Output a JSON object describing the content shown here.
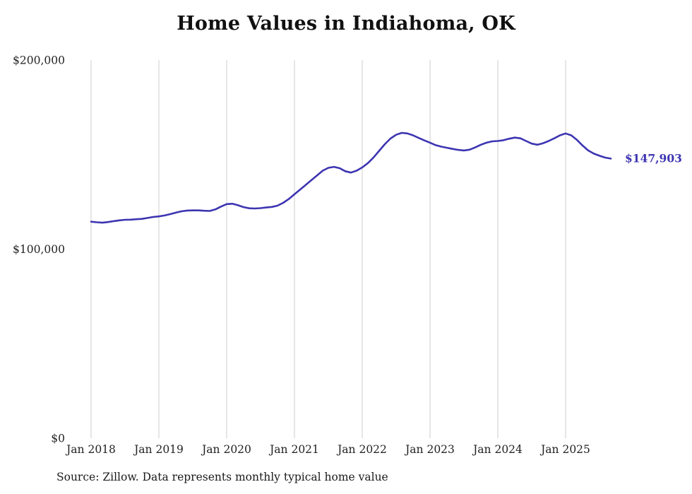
{
  "chart_data": {
    "type": "line",
    "title": "Home Values in Indiahoma, OK",
    "xlabel": "",
    "ylabel": "",
    "ylim": [
      0,
      200000
    ],
    "series_name": "Monthly typical home value",
    "line_color": "#3d35b1",
    "gridline_color": "#cccccc",
    "grid": "vertical-yearly",
    "legend": "none",
    "end_label": "$147,903",
    "end_value": 147903,
    "x": [
      "2018-01",
      "2018-02",
      "2018-03",
      "2018-04",
      "2018-05",
      "2018-06",
      "2018-07",
      "2018-08",
      "2018-09",
      "2018-10",
      "2018-11",
      "2018-12",
      "2019-01",
      "2019-02",
      "2019-03",
      "2019-04",
      "2019-05",
      "2019-06",
      "2019-07",
      "2019-08",
      "2019-09",
      "2019-10",
      "2019-11",
      "2019-12",
      "2020-01",
      "2020-02",
      "2020-03",
      "2020-04",
      "2020-05",
      "2020-06",
      "2020-07",
      "2020-08",
      "2020-09",
      "2020-10",
      "2020-11",
      "2020-12",
      "2021-01",
      "2021-02",
      "2021-03",
      "2021-04",
      "2021-05",
      "2021-06",
      "2021-07",
      "2021-08",
      "2021-09",
      "2021-10",
      "2021-11",
      "2021-12",
      "2022-01",
      "2022-02",
      "2022-03",
      "2022-04",
      "2022-05",
      "2022-06",
      "2022-07",
      "2022-08",
      "2022-09",
      "2022-10",
      "2022-11",
      "2022-12",
      "2023-01",
      "2023-02",
      "2023-03",
      "2023-04",
      "2023-05",
      "2023-06",
      "2023-07",
      "2023-08",
      "2023-09",
      "2023-10",
      "2023-11",
      "2023-12",
      "2024-01",
      "2024-02",
      "2024-03",
      "2024-04",
      "2024-05",
      "2024-06",
      "2024-07",
      "2024-08",
      "2024-09",
      "2024-10",
      "2024-11",
      "2024-12",
      "2025-01",
      "2025-02",
      "2025-03",
      "2025-04",
      "2025-05",
      "2025-06",
      "2025-07",
      "2025-08",
      "2025-09"
    ],
    "values": [
      114500,
      114200,
      114000,
      114300,
      114800,
      115200,
      115500,
      115600,
      115800,
      116000,
      116500,
      117000,
      117300,
      117800,
      118500,
      119300,
      120000,
      120400,
      120500,
      120500,
      120300,
      120200,
      121000,
      122500,
      123800,
      124000,
      123200,
      122200,
      121600,
      121500,
      121700,
      122000,
      122300,
      123000,
      124500,
      126500,
      129000,
      131500,
      134000,
      136500,
      139000,
      141500,
      143000,
      143500,
      142800,
      141200,
      140500,
      141500,
      143200,
      145500,
      148500,
      152000,
      155500,
      158500,
      160500,
      161500,
      161200,
      160200,
      158800,
      157500,
      156300,
      155000,
      154200,
      153600,
      153000,
      152500,
      152200,
      152600,
      153800,
      155200,
      156300,
      157000,
      157200,
      157600,
      158400,
      159000,
      158600,
      157200,
      155800,
      155200,
      156000,
      157200,
      158600,
      160200,
      161200,
      160200,
      157800,
      154800,
      152200,
      150500,
      149400,
      148400,
      147903
    ],
    "y_ticks": [
      {
        "value": 0,
        "label": "$0"
      },
      {
        "value": 100000,
        "label": "$100,000"
      },
      {
        "value": 200000,
        "label": "$200,000"
      }
    ],
    "x_ticks": [
      {
        "month_index": 0,
        "label": "Jan 2018"
      },
      {
        "month_index": 12,
        "label": "Jan 2019"
      },
      {
        "month_index": 24,
        "label": "Jan 2020"
      },
      {
        "month_index": 36,
        "label": "Jan 2021"
      },
      {
        "month_index": 48,
        "label": "Jan 2022"
      },
      {
        "month_index": 60,
        "label": "Jan 2023"
      },
      {
        "month_index": 72,
        "label": "Jan 2024"
      },
      {
        "month_index": 84,
        "label": "Jan 2025"
      }
    ]
  },
  "source_note": "Source: Zillow. Data represents monthly typical home value"
}
